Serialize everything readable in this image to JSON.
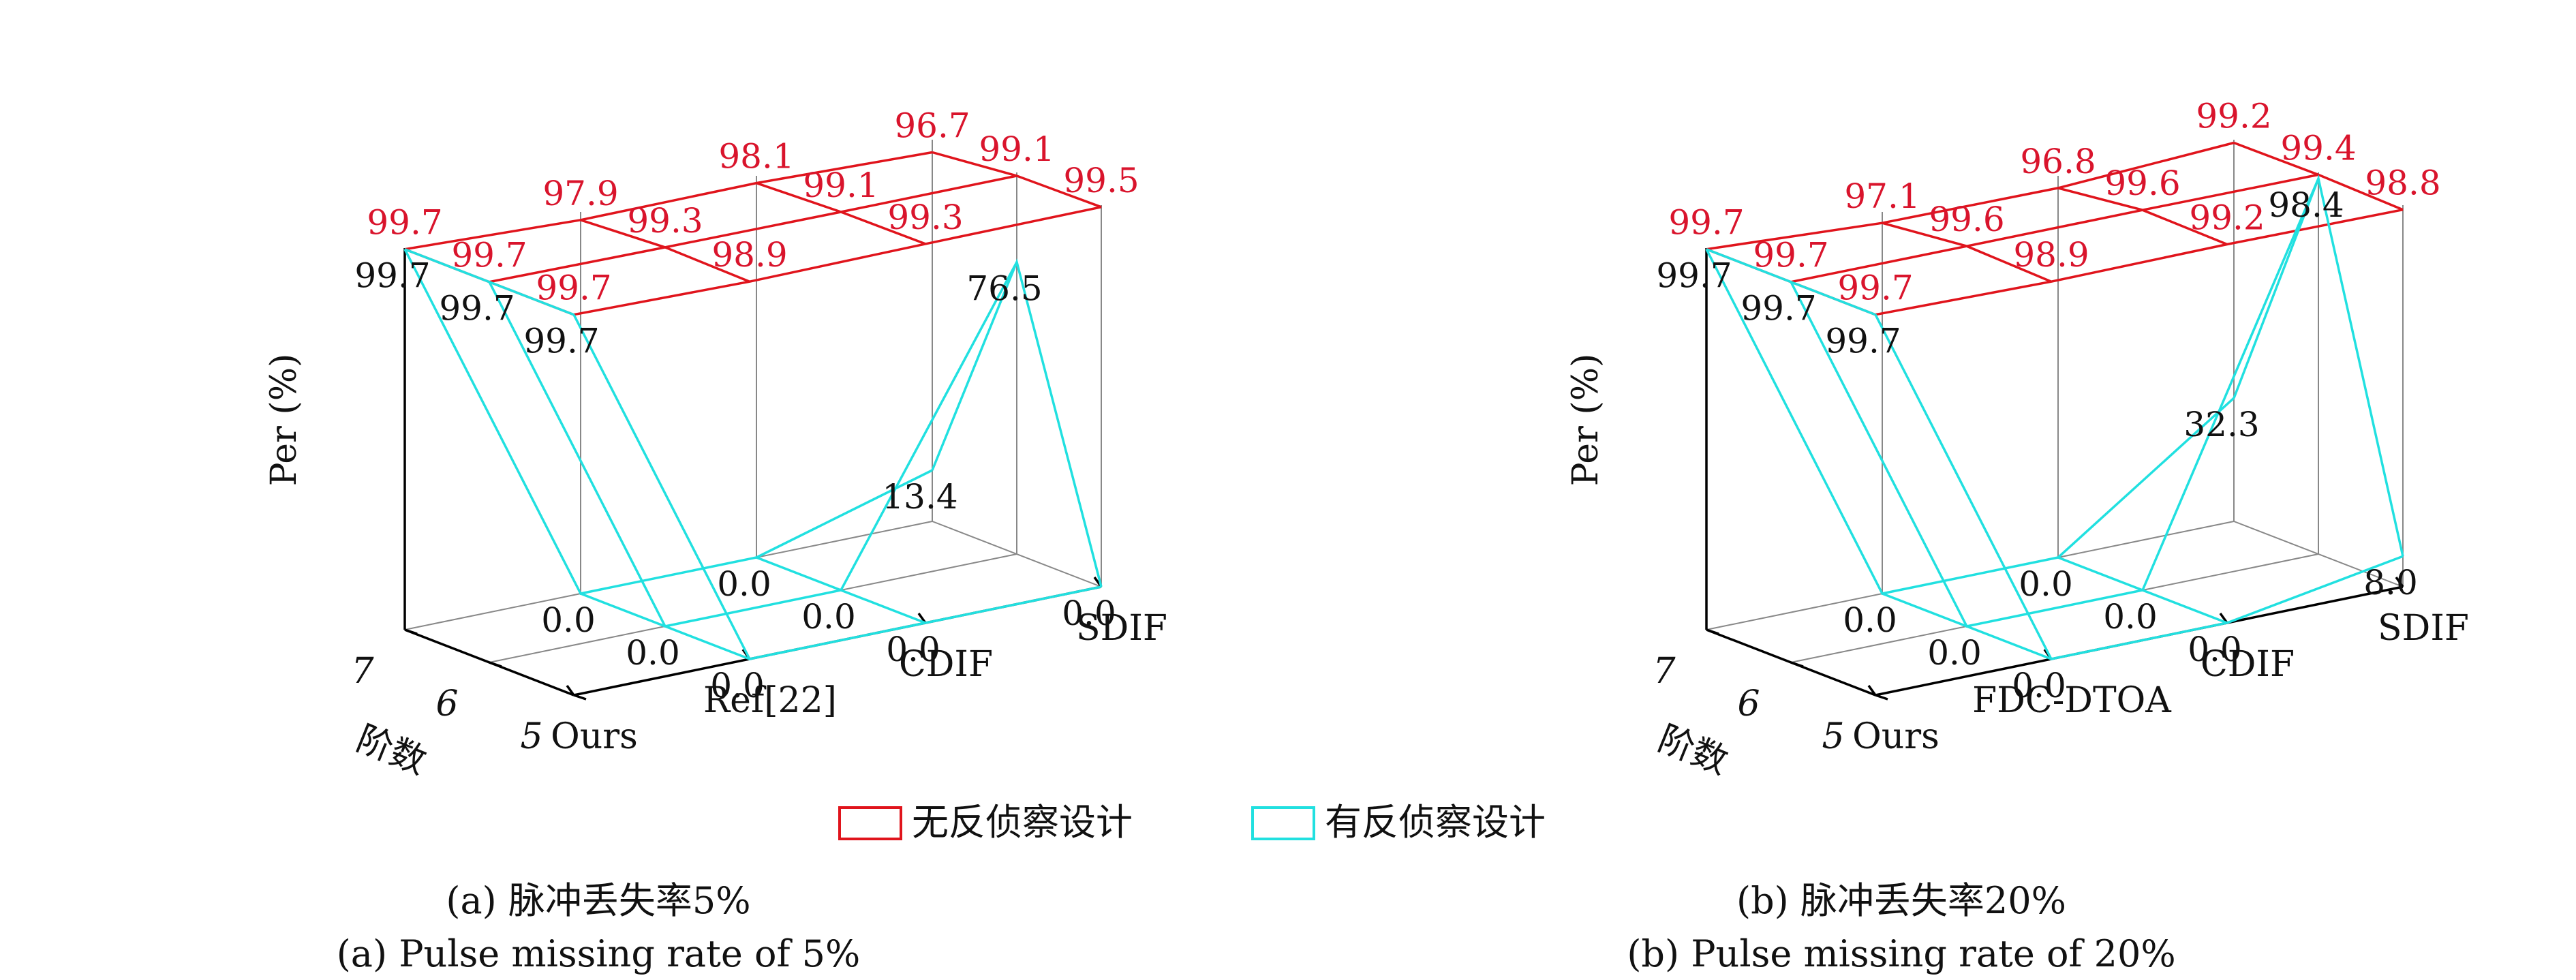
{
  "chart_data": [
    {
      "type": "3d-line-grid",
      "caption_cn": "(a) 脉冲丢失率5%",
      "caption_en": "(a) Pulse missing rate of 5%",
      "zlabel": "Per (%)",
      "order_label": "阶数",
      "orders": [
        "7",
        "6",
        "5"
      ],
      "methods": [
        "Ours",
        "Ref[22]",
        "CDIF",
        "SDIF"
      ],
      "series": [
        {
          "name": "无反侦察设计",
          "color": "#e0141c",
          "values": {
            "7": [
              99.7,
              97.9,
              98.1,
              96.7
            ],
            "6": [
              99.7,
              99.3,
              99.1,
              99.1
            ],
            "5": [
              99.7,
              98.9,
              99.3,
              99.5
            ]
          }
        },
        {
          "name": "有反侦察设计",
          "color": "#21e0e0",
          "values": {
            "7": [
              99.7,
              0.0,
              0.0,
              13.4
            ],
            "6": [
              99.7,
              0.0,
              0.0,
              76.5
            ],
            "5": [
              99.7,
              0.0,
              0.0,
              0.0
            ]
          }
        }
      ]
    },
    {
      "type": "3d-line-grid",
      "caption_cn": "(b) 脉冲丢失率20%",
      "caption_en": "(b) Pulse missing rate of 20%",
      "zlabel": "Per (%)",
      "order_label": "阶数",
      "orders": [
        "7",
        "6",
        "5"
      ],
      "methods": [
        "Ours",
        "FDC-DTOA",
        "CDIF",
        "SDIF"
      ],
      "series": [
        {
          "name": "无反侦察设计",
          "color": "#e0141c",
          "values": {
            "7": [
              99.7,
              97.1,
              96.8,
              99.2
            ],
            "6": [
              99.7,
              99.6,
              99.6,
              99.4
            ],
            "5": [
              99.7,
              98.9,
              99.2,
              98.8
            ]
          }
        },
        {
          "name": "有反侦察设计",
          "color": "#21e0e0",
          "values": {
            "7": [
              99.7,
              0.0,
              0.0,
              32.3
            ],
            "6": [
              99.7,
              0.0,
              0.0,
              98.4
            ],
            "5": [
              99.7,
              0.0,
              0.0,
              8.0
            ]
          }
        }
      ]
    }
  ],
  "legend": {
    "items": [
      {
        "label": "无反侦察设计",
        "color": "#e0141c"
      },
      {
        "label": "有反侦察设计",
        "color": "#21e0e0"
      }
    ]
  }
}
